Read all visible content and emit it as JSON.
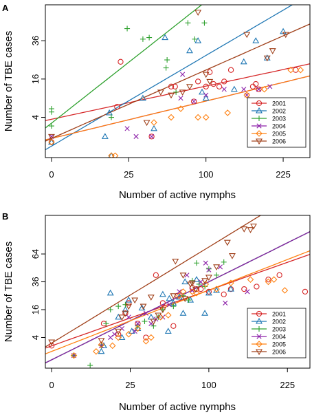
{
  "colors": {
    "2001": "#d62728",
    "2002": "#1f77b4",
    "2003": "#2ca02c",
    "2004": "#8b1fa8",
    "2005": "#ff7f0e",
    "2006": "#a0401a"
  },
  "chart_data": [
    {
      "panel_label": "A",
      "type": "scatter",
      "xlabel": "Number of active nymphs",
      "ylabel": "Number of TBE cases",
      "x_scale": "sqrt",
      "y_scale": "sqrt",
      "xticks": [
        0,
        25,
        100,
        225
      ],
      "yticks": [
        4,
        16,
        36
      ],
      "xlim": [
        0,
        280
      ],
      "ylim": [
        0,
        62
      ],
      "legend_position": "bottom-right",
      "grid": false,
      "series": [
        {
          "name": "2001",
          "marker": "circle",
          "points": [
            [
              0,
              0.5
            ],
            [
              18,
              6.5
            ],
            [
              20,
              24
            ],
            [
              42,
              1
            ],
            [
              60,
              13
            ],
            [
              64,
              13
            ],
            [
              85,
              8
            ],
            [
              90,
              15
            ],
            [
              100,
              13
            ],
            [
              105,
              19
            ],
            [
              110,
              14
            ],
            [
              118,
              13
            ],
            [
              125,
              15
            ],
            [
              135,
              20
            ],
            [
              170,
              13
            ],
            [
              175,
              14
            ],
            [
              180,
              12
            ],
            [
              250,
              20
            ]
          ],
          "fit": {
            "intercept": 1.9,
            "slope": 0.173
          }
        },
        {
          "name": "2002",
          "marker": "triangle-up",
          "points": [
            [
              0,
              0.5
            ],
            [
              12,
              1
            ],
            [
              14,
              5
            ],
            [
              15,
              0
            ],
            [
              35,
              9
            ],
            [
              44,
              2
            ],
            [
              54,
              38
            ],
            [
              80,
              30
            ],
            [
              90,
              36
            ],
            [
              95,
              11
            ],
            [
              100,
              9
            ],
            [
              140,
              12
            ],
            [
              155,
              24
            ],
            [
              175,
              36
            ],
            [
              195,
              26
            ],
            [
              225,
              42
            ]
          ],
          "fit": {
            "intercept": 0.5,
            "slope": 0.473
          }
        },
        {
          "name": "2003",
          "marker": "plus",
          "points": [
            [
              0,
              6
            ],
            [
              0,
              5.2
            ],
            [
              0,
              2.4
            ],
            [
              15,
              4
            ],
            [
              24,
              44
            ],
            [
              35,
              37
            ],
            [
              40,
              38
            ],
            [
              55,
              21
            ],
            [
              56,
              25
            ],
            [
              65,
              11
            ],
            [
              78,
              48
            ],
            [
              86,
              37
            ],
            [
              98,
              48
            ]
          ],
          "fit": {
            "intercept": 1.7,
            "slope": 0.635
          }
        },
        {
          "name": "2004",
          "marker": "cross",
          "points": [
            [
              0,
              1
            ],
            [
              24,
              2
            ],
            [
              30,
              1
            ],
            [
              42,
              1
            ],
            [
              70,
              9
            ],
            [
              72,
              18
            ],
            [
              85,
              8
            ],
            [
              100,
              10
            ],
            [
              125,
              12
            ],
            [
              155,
              12
            ],
            [
              160,
              10
            ],
            [
              180,
              12
            ],
            [
              200,
              13
            ]
          ],
          "fit": {
            "intercept": 0.9,
            "slope": 0.195
          }
        },
        {
          "name": "2005",
          "marker": "diamond",
          "points": [
            [
              0,
              0.5
            ],
            [
              15,
              0
            ],
            [
              17,
              0
            ],
            [
              44,
              3
            ],
            [
              60,
              4
            ],
            [
              70,
              6
            ],
            [
              90,
              4
            ],
            [
              100,
              4
            ],
            [
              130,
              5
            ],
            [
              160,
              10
            ],
            [
              190,
              12
            ],
            [
              240,
              20
            ],
            [
              260,
              20
            ]
          ],
          "fit": {
            "intercept": 0.9,
            "slope": 0.195
          }
        },
        {
          "name": "2006",
          "marker": "triangle-down",
          "points": [
            [
              0,
              1
            ],
            [
              38,
              3
            ],
            [
              50,
              11
            ],
            [
              60,
              10
            ],
            [
              72,
              11
            ],
            [
              80,
              13
            ],
            [
              90,
              56
            ],
            [
              100,
              18
            ],
            [
              105,
              15
            ],
            [
              160,
              40
            ],
            [
              195,
              26
            ],
            [
              205,
              30
            ],
            [
              230,
              40
            ]
          ],
          "fit": {
            "intercept": 0.9,
            "slope": 0.357
          }
        }
      ]
    },
    {
      "panel_label": "B",
      "type": "scatter",
      "xlabel": "Number of active nymphs",
      "ylabel": "Number of TBE cases",
      "x_scale": "sqrt",
      "y_scale": "sqrt",
      "xticks": [
        0,
        25,
        100,
        225
      ],
      "yticks": [
        4,
        16,
        36,
        64
      ],
      "xlim": [
        0,
        270
      ],
      "ylim": [
        0,
        116
      ],
      "legend_position": "bottom-right",
      "grid": false,
      "series": [
        {
          "name": "2001",
          "marker": "circle",
          "points": [
            [
              0,
              2
            ],
            [
              11,
              9
            ],
            [
              18,
              5
            ],
            [
              22,
              14
            ],
            [
              24,
              20
            ],
            [
              30,
              9
            ],
            [
              36,
              4
            ],
            [
              44,
              42
            ],
            [
              50,
              20
            ],
            [
              60,
              8
            ],
            [
              64,
              25
            ],
            [
              80,
              31
            ],
            [
              85,
              30
            ],
            [
              90,
              30
            ],
            [
              100,
              28
            ],
            [
              120,
              26
            ],
            [
              130,
              30
            ],
            [
              150,
              30
            ],
            [
              170,
              32
            ],
            [
              190,
              38
            ],
            [
              210,
              42
            ],
            [
              260,
              28
            ]
          ],
          "fit": {
            "intercept": 1.4,
            "slope": 0.4
          }
        },
        {
          "name": "2002",
          "marker": "triangle-up",
          "points": [
            [
              10,
              1
            ],
            [
              11,
              2
            ],
            [
              14,
              27
            ],
            [
              18,
              12
            ],
            [
              20,
              4
            ],
            [
              22,
              16
            ],
            [
              24,
              22
            ],
            [
              26,
              6
            ],
            [
              30,
              7
            ],
            [
              33,
              17
            ],
            [
              40,
              12
            ],
            [
              50,
              26
            ],
            [
              55,
              6
            ],
            [
              56,
              23
            ],
            [
              60,
              20
            ],
            [
              66,
              24
            ],
            [
              70,
              14
            ],
            [
              72,
              36
            ],
            [
              78,
              22
            ],
            [
              85,
              38
            ],
            [
              95,
              14
            ],
            [
              100,
              27
            ],
            [
              110,
              29
            ],
            [
              130,
              30
            ]
          ],
          "fit": {
            "intercept": 0.4,
            "slope": 0.56
          }
        },
        {
          "name": "2003",
          "marker": "plus",
          "points": [
            [
              2,
              0.5
            ],
            [
              6,
              0
            ],
            [
              10,
              2
            ],
            [
              12,
              9
            ],
            [
              14,
              16
            ],
            [
              18,
              18
            ],
            [
              22,
              19
            ],
            [
              30,
              8
            ],
            [
              35,
              10
            ],
            [
              42,
              8
            ],
            [
              46,
              12
            ],
            [
              50,
              16
            ],
            [
              60,
              18
            ],
            [
              70,
              25
            ],
            [
              76,
              22
            ],
            [
              80,
              37
            ],
            [
              85,
              54
            ],
            [
              88,
              34
            ],
            [
              95,
              32
            ],
            [
              100,
              48
            ],
            [
              110,
              42
            ],
            [
              120,
              55
            ]
          ],
          "fit": {
            "intercept": 0.4,
            "slope": 0.56
          }
        },
        {
          "name": "2004",
          "marker": "cross",
          "points": [
            [
              2,
              0.5
            ],
            [
              10,
              2
            ],
            [
              14,
              4
            ],
            [
              16,
              5
            ],
            [
              20,
              7
            ],
            [
              24,
              12
            ],
            [
              28,
              6
            ],
            [
              30,
              9
            ],
            [
              36,
              14
            ],
            [
              40,
              9
            ],
            [
              44,
              11
            ],
            [
              50,
              12
            ],
            [
              56,
              19
            ],
            [
              66,
              28
            ],
            [
              74,
              42
            ],
            [
              80,
              29
            ],
            [
              90,
              36
            ],
            [
              96,
              54
            ],
            [
              100,
              47
            ],
            [
              115,
              50
            ],
            [
              122,
              20
            ],
            [
              155,
              28
            ]
          ],
          "fit": {
            "intercept": 0.4,
            "slope": 0.56
          }
        },
        {
          "name": "2005",
          "marker": "diamond",
          "points": [
            [
              2,
              0.5
            ],
            [
              8,
              1
            ],
            [
              10,
              2.2
            ],
            [
              15,
              2
            ],
            [
              18,
              4
            ],
            [
              24,
              5
            ],
            [
              30,
              7
            ],
            [
              36,
              3
            ],
            [
              40,
              4
            ],
            [
              48,
              12
            ],
            [
              55,
              13
            ],
            [
              66,
              25
            ],
            [
              70,
              28
            ],
            [
              80,
              28
            ],
            [
              85,
              27
            ],
            [
              96,
              34
            ],
            [
              110,
              30
            ],
            [
              130,
              35
            ],
            [
              160,
              38
            ],
            [
              190,
              36
            ],
            [
              200,
              38
            ],
            [
              220,
              29
            ]
          ],
          "fit": {
            "intercept": 1.0,
            "slope": 0.44
          }
        },
        {
          "name": "2006",
          "marker": "triangle-down",
          "points": [
            [
              0,
              2.8
            ],
            [
              10,
              3.2
            ],
            [
              18,
              6
            ],
            [
              20,
              12
            ],
            [
              22,
              14
            ],
            [
              24,
              18
            ],
            [
              28,
              22
            ],
            [
              34,
              18
            ],
            [
              40,
              24
            ],
            [
              42,
              10
            ],
            [
              46,
              13
            ],
            [
              50,
              16
            ],
            [
              60,
              25
            ],
            [
              62,
              56
            ],
            [
              70,
              42
            ],
            [
              72,
              23
            ],
            [
              78,
              34
            ],
            [
              80,
              35
            ],
            [
              84,
              30
            ],
            [
              95,
              37
            ],
            [
              100,
              40
            ],
            [
              110,
              50
            ],
            [
              125,
              78
            ],
            [
              132,
              62
            ],
            [
              150,
              96
            ],
            [
              160,
              95
            ],
            [
              165,
              100
            ]
          ],
          "fit": {
            "intercept": 1.6,
            "slope": 0.69
          }
        }
      ]
    }
  ]
}
